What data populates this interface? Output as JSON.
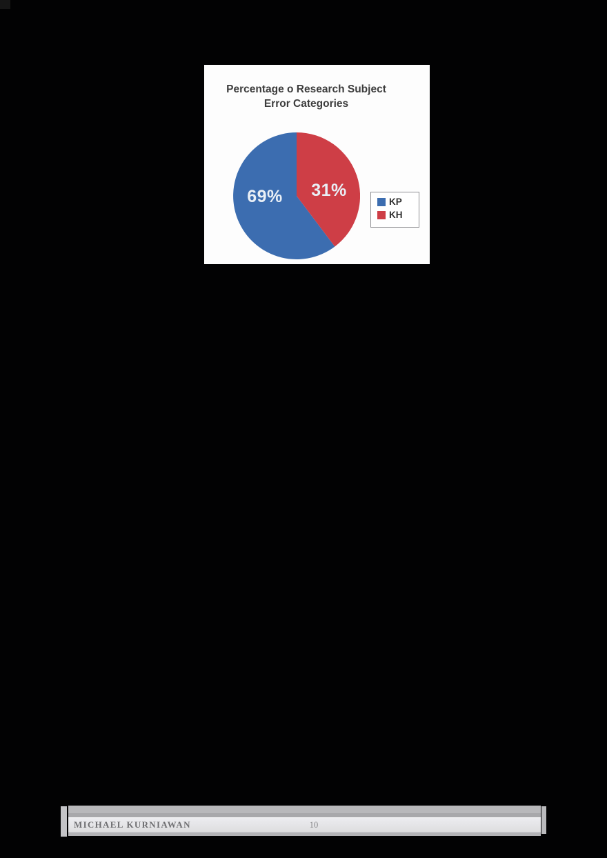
{
  "page": {
    "footer": {
      "author": "MICHAEL KURNIAWAN",
      "page_number": "10"
    }
  },
  "chart_data": {
    "type": "pie",
    "title": "Percentage o Research Subject Error Categories",
    "title_lines": [
      "Percentage o Research Subject",
      "Error Categories"
    ],
    "categories": [
      "KP",
      "KH"
    ],
    "values": [
      69,
      31
    ],
    "slices": [
      {
        "label": "KP",
        "value": 69,
        "display": "69%",
        "color": "#3c6db0",
        "start_deg": 143,
        "sweep_deg": 217
      },
      {
        "label": "KH",
        "value": 31,
        "display": "31%",
        "color": "#ce3e46",
        "start_deg": 0,
        "sweep_deg": 143
      }
    ],
    "legend_position": "right",
    "label_color": "#e9eff6",
    "background": "#fdfdfd"
  }
}
